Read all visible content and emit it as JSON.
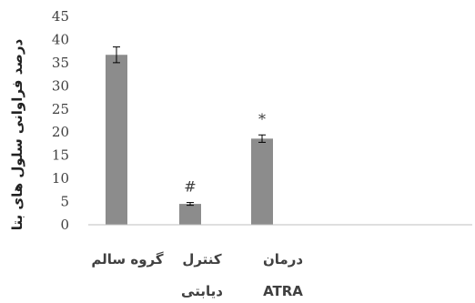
{
  "chart_data": {
    "type": "bar",
    "ylabel": "درصد فراوانی سلول های بتا",
    "xlabel": "",
    "ylim": [
      0,
      45
    ],
    "yticks": [
      0,
      5,
      10,
      15,
      20,
      25,
      30,
      35,
      40,
      45
    ],
    "grid": false,
    "legend": "none",
    "bar_color": "#8c8c8c",
    "categories": [
      {
        "lines": [
          "گروه سالم"
        ]
      },
      {
        "lines": [
          "کنترل",
          "دیابتی"
        ]
      },
      {
        "lines": [
          "درمان",
          "ATRA"
        ]
      }
    ],
    "values": [
      36.7,
      4.5,
      18.6
    ],
    "errors": [
      1.7,
      0.3,
      0.8
    ],
    "annotations": [
      "",
      "#",
      "*"
    ]
  }
}
